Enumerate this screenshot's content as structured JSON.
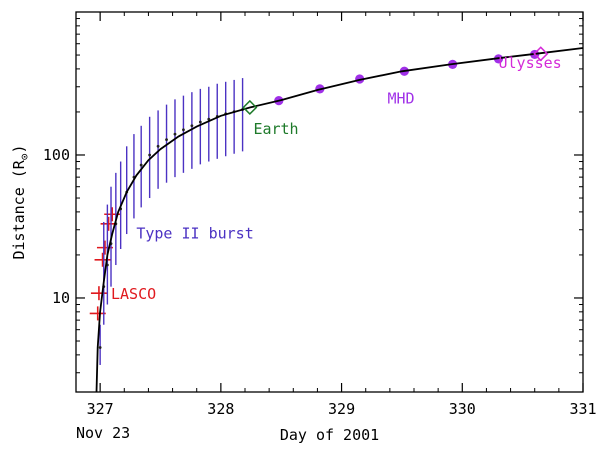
{
  "chart_data": {
    "type": "scatter",
    "xlabel": "Day of 2001",
    "ylabel": "Distance (R",
    "ylabel_unit_symbol": "⊙",
    "xlim": [
      326.8,
      331.0
    ],
    "ylim": [
      2.2,
      1000
    ],
    "y_scale": "log",
    "x_ticks": [
      327,
      328,
      329,
      330,
      331
    ],
    "x_tick_labels": [
      "327",
      "328",
      "329",
      "330",
      "331"
    ],
    "y_ticks": [
      10,
      100
    ],
    "y_tick_labels": [
      "10",
      "100"
    ],
    "x_sublabel": "Nov 23",
    "grid": false,
    "colors": {
      "lasco": "#e0191e",
      "type2": "#4b32c3",
      "earth": "#1e7a2a",
      "mhd": "#a030e8",
      "ulysses": "#d42ad8",
      "fit": "#000000"
    },
    "annotations": [
      {
        "text": "LASCO",
        "x": 327.09,
        "y": 9.8,
        "color": "lasco"
      },
      {
        "text": "Type II burst",
        "x": 327.3,
        "y": 26,
        "color": "type2"
      },
      {
        "text": "Earth",
        "x": 328.27,
        "y": 140,
        "color": "earth"
      },
      {
        "text": "MHD",
        "x": 329.38,
        "y": 230,
        "color": "mhd"
      },
      {
        "text": "Ulysses",
        "x": 330.3,
        "y": 405,
        "color": "ulysses"
      }
    ],
    "series": [
      {
        "name": "LASCO",
        "marker": "cross",
        "color": "lasco",
        "points": [
          {
            "x": 326.98,
            "y": 7.8
          },
          {
            "x": 326.99,
            "y": 10.8
          },
          {
            "x": 327.02,
            "y": 18.5
          },
          {
            "x": 327.04,
            "y": 22.5
          },
          {
            "x": 327.07,
            "y": 33
          },
          {
            "x": 327.1,
            "y": 38.5
          }
        ]
      },
      {
        "name": "Type II burst",
        "marker": "dot-with-errorbar",
        "color": "type2",
        "points": [
          {
            "x": 327.0,
            "y": 4.5,
            "lo": 3.4,
            "hi": 6.5
          },
          {
            "x": 327.03,
            "y": 12,
            "lo": 6.5,
            "hi": 34
          },
          {
            "x": 327.06,
            "y": 17,
            "lo": 9,
            "hi": 45
          },
          {
            "x": 327.09,
            "y": 24,
            "lo": 12,
            "hi": 60
          },
          {
            "x": 327.13,
            "y": 33,
            "lo": 17,
            "hi": 75
          },
          {
            "x": 327.17,
            "y": 42,
            "lo": 22,
            "hi": 90
          },
          {
            "x": 327.22,
            "y": 55,
            "lo": 28,
            "hi": 115
          },
          {
            "x": 327.28,
            "y": 70,
            "lo": 36,
            "hi": 140
          },
          {
            "x": 327.34,
            "y": 85,
            "lo": 43,
            "hi": 160
          },
          {
            "x": 327.41,
            "y": 100,
            "lo": 50,
            "hi": 185
          },
          {
            "x": 327.48,
            "y": 115,
            "lo": 58,
            "hi": 205
          },
          {
            "x": 327.55,
            "y": 128,
            "lo": 64,
            "hi": 225
          },
          {
            "x": 327.62,
            "y": 140,
            "lo": 70,
            "hi": 245
          },
          {
            "x": 327.69,
            "y": 150,
            "lo": 75,
            "hi": 260
          },
          {
            "x": 327.76,
            "y": 160,
            "lo": 80,
            "hi": 275
          },
          {
            "x": 327.83,
            "y": 170,
            "lo": 86,
            "hi": 290
          },
          {
            "x": 327.9,
            "y": 178,
            "lo": 90,
            "hi": 300
          },
          {
            "x": 327.97,
            "y": 186,
            "lo": 94,
            "hi": 315
          },
          {
            "x": 328.04,
            "y": 194,
            "lo": 98,
            "hi": 325
          },
          {
            "x": 328.11,
            "y": 201,
            "lo": 102,
            "hi": 335
          },
          {
            "x": 328.18,
            "y": 208,
            "lo": 106,
            "hi": 345
          }
        ]
      },
      {
        "name": "Earth",
        "marker": "diamond",
        "color": "earth",
        "points": [
          {
            "x": 328.24,
            "y": 215
          }
        ]
      },
      {
        "name": "MHD",
        "marker": "filled-circle",
        "color": "mhd",
        "points": [
          {
            "x": 328.48,
            "y": 240
          },
          {
            "x": 328.82,
            "y": 290
          },
          {
            "x": 329.15,
            "y": 340
          },
          {
            "x": 329.52,
            "y": 385
          },
          {
            "x": 329.92,
            "y": 430
          },
          {
            "x": 330.3,
            "y": 470
          },
          {
            "x": 330.6,
            "y": 505
          }
        ]
      },
      {
        "name": "Ulysses",
        "marker": "diamond",
        "color": "ulysses",
        "points": [
          {
            "x": 330.65,
            "y": 510
          }
        ]
      },
      {
        "name": "fit",
        "marker": "line",
        "color": "fit",
        "points": [
          {
            "x": 326.97,
            "y": 2.2
          },
          {
            "x": 326.98,
            "y": 4.5
          },
          {
            "x": 327.0,
            "y": 8
          },
          {
            "x": 327.03,
            "y": 13
          },
          {
            "x": 327.06,
            "y": 20
          },
          {
            "x": 327.1,
            "y": 28
          },
          {
            "x": 327.15,
            "y": 40
          },
          {
            "x": 327.22,
            "y": 55
          },
          {
            "x": 327.3,
            "y": 72
          },
          {
            "x": 327.4,
            "y": 92
          },
          {
            "x": 327.5,
            "y": 110
          },
          {
            "x": 327.65,
            "y": 135
          },
          {
            "x": 327.8,
            "y": 158
          },
          {
            "x": 328.0,
            "y": 188
          },
          {
            "x": 328.24,
            "y": 215
          },
          {
            "x": 328.5,
            "y": 242
          },
          {
            "x": 328.8,
            "y": 285
          },
          {
            "x": 329.15,
            "y": 335
          },
          {
            "x": 329.5,
            "y": 385
          },
          {
            "x": 329.9,
            "y": 430
          },
          {
            "x": 330.3,
            "y": 475
          },
          {
            "x": 330.65,
            "y": 515
          },
          {
            "x": 331.0,
            "y": 560
          }
        ]
      }
    ]
  }
}
